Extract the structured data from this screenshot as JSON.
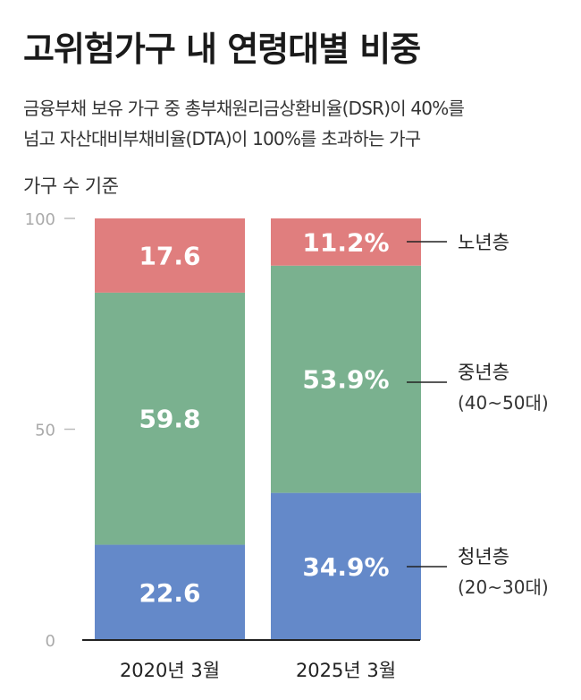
{
  "title": "고위험가구 내 연령대별 비중",
  "subtitle_line1": "금융부채 보유 가구 중 총부채원리금상환비율(DSR)이 40%를",
  "subtitle_line2": "넘고 자산대비부채비율(DTA)이 100%를 초과하는 가구",
  "unit_note": "가구 수 기준",
  "chart_data": {
    "type": "bar",
    "stacked": true,
    "title": "고위험가구 내 연령대별 비중",
    "categories": [
      "2020년 3월",
      "2025년 3월"
    ],
    "ylim": [
      0,
      100
    ],
    "yticks": [
      0,
      50,
      100
    ],
    "series": [
      {
        "name": "청년층",
        "sub": "(20~30대)",
        "color": "#6489c9",
        "values": [
          22.6,
          34.9
        ],
        "labels": [
          "22.6",
          "34.9%"
        ]
      },
      {
        "name": "중년층",
        "sub": "(40~50대)",
        "color": "#7ab18f",
        "values": [
          59.8,
          53.9
        ],
        "labels": [
          "59.8",
          "53.9%"
        ]
      },
      {
        "name": "노년층",
        "sub": "",
        "color": "#e07e7e",
        "values": [
          17.6,
          11.2
        ],
        "labels": [
          "17.6",
          "11.2%"
        ]
      }
    ]
  }
}
